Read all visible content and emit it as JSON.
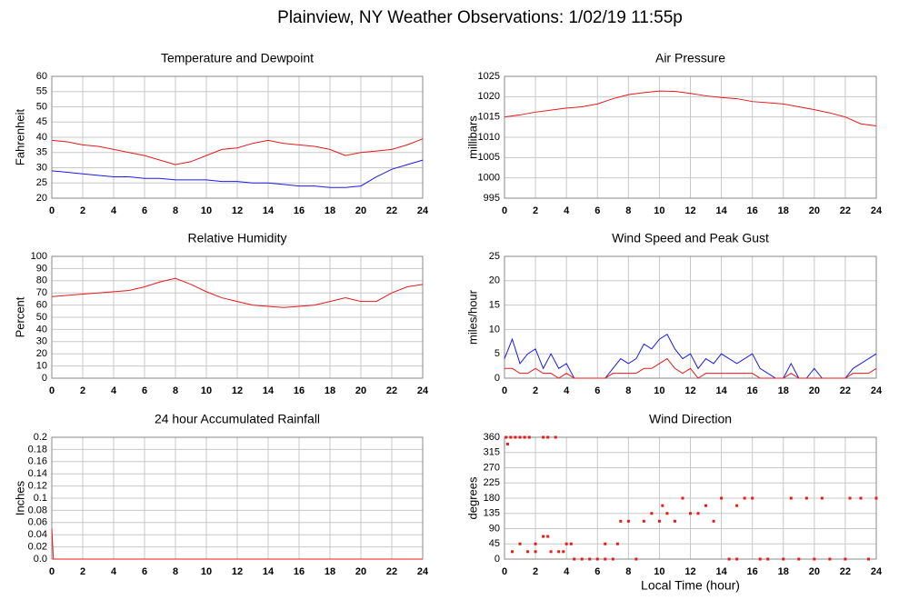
{
  "title": "Plainview, NY Weather Observations: 1/02/19 11:55p",
  "chart_data": [
    {
      "type": "line",
      "title": "Temperature and Dewpoint",
      "ylabel": "Fahrenheit",
      "x": [
        0,
        1,
        2,
        3,
        4,
        5,
        6,
        7,
        8,
        9,
        10,
        11,
        12,
        13,
        14,
        15,
        16,
        17,
        18,
        19,
        20,
        21,
        22,
        23,
        24
      ],
      "series": [
        {
          "color": "#e8191a",
          "values": [
            39,
            38.5,
            37.5,
            37,
            36,
            35,
            34,
            32.5,
            31,
            32,
            34,
            36,
            36.5,
            38,
            39,
            38,
            37.5,
            37,
            36,
            34,
            35,
            35.5,
            36,
            37.5,
            39.5
          ]
        },
        {
          "color": "#1a1ae8",
          "values": [
            29,
            28.5,
            28,
            27.5,
            27,
            27,
            26.5,
            26.5,
            26,
            26,
            26,
            25.5,
            25.5,
            25,
            25,
            24.5,
            24,
            24,
            23.5,
            23.5,
            24,
            27,
            29.5,
            31,
            32.5
          ]
        }
      ],
      "xlim": [
        0,
        24
      ],
      "xticks": [
        0,
        2,
        4,
        6,
        8,
        10,
        12,
        14,
        16,
        18,
        20,
        22,
        24
      ],
      "ylim": [
        20,
        60
      ],
      "yticks": [
        20,
        25,
        30,
        35,
        40,
        45,
        50,
        55,
        60
      ],
      "grid": true
    },
    {
      "type": "line",
      "title": "Air Pressure",
      "ylabel": "millibars",
      "x": [
        0,
        1,
        2,
        3,
        4,
        5,
        6,
        7,
        8,
        9,
        10,
        11,
        12,
        13,
        14,
        15,
        16,
        17,
        18,
        19,
        20,
        21,
        22,
        23,
        24
      ],
      "series": [
        {
          "color": "#e8191a",
          "values": [
            1015,
            1015.5,
            1016.2,
            1016.7,
            1017.2,
            1017.5,
            1018.2,
            1019.5,
            1020.5,
            1021,
            1021.4,
            1021.3,
            1020.8,
            1020.2,
            1019.8,
            1019.5,
            1018.8,
            1018.5,
            1018.2,
            1017.5,
            1016.8,
            1016,
            1015,
            1013.3,
            1012.8
          ]
        }
      ],
      "xlim": [
        0,
        24
      ],
      "xticks": [
        0,
        2,
        4,
        6,
        8,
        10,
        12,
        14,
        16,
        18,
        20,
        22,
        24
      ],
      "ylim": [
        995,
        1025
      ],
      "yticks": [
        995,
        1000,
        1005,
        1010,
        1015,
        1020,
        1025
      ],
      "grid": true
    },
    {
      "type": "line",
      "title": "Relative Humidity",
      "ylabel": "Percent",
      "x": [
        0,
        1,
        2,
        3,
        4,
        5,
        6,
        7,
        8,
        9,
        10,
        11,
        12,
        13,
        14,
        15,
        16,
        17,
        18,
        19,
        20,
        21,
        22,
        23,
        24
      ],
      "series": [
        {
          "color": "#e8191a",
          "values": [
            67,
            68,
            69,
            70,
            71,
            72,
            75,
            79,
            82,
            77,
            71,
            66,
            63,
            60,
            59,
            58,
            59,
            60,
            63,
            66,
            63,
            63,
            70,
            75,
            77
          ]
        }
      ],
      "xlim": [
        0,
        24
      ],
      "xticks": [
        0,
        2,
        4,
        6,
        8,
        10,
        12,
        14,
        16,
        18,
        20,
        22,
        24
      ],
      "ylim": [
        0,
        100
      ],
      "yticks": [
        0,
        10,
        20,
        30,
        40,
        50,
        60,
        70,
        80,
        90,
        100
      ],
      "grid": true
    },
    {
      "type": "line",
      "title": "Wind Speed and Peak Gust",
      "ylabel": "miles/hour",
      "x": [
        0,
        0.5,
        1,
        1.5,
        2,
        2.5,
        3,
        3.5,
        4,
        4.5,
        5,
        5.5,
        6,
        6.5,
        7,
        7.5,
        8,
        8.5,
        9,
        9.5,
        10,
        10.5,
        11,
        11.5,
        12,
        12.5,
        13,
        13.5,
        14,
        14.5,
        15,
        15.5,
        16,
        16.5,
        17,
        17.5,
        18,
        18.5,
        19,
        19.5,
        20,
        20.5,
        21,
        21.5,
        22,
        22.5,
        23,
        23.5,
        24
      ],
      "series": [
        {
          "color": "#1a1ae8",
          "values": [
            4,
            8,
            3,
            5,
            6,
            2,
            5,
            2,
            3,
            0,
            0,
            0,
            0,
            0,
            2,
            4,
            3,
            4,
            7,
            6,
            8,
            9,
            6,
            4,
            5,
            2,
            4,
            3,
            5,
            4,
            3,
            4,
            5,
            2,
            1,
            0,
            0,
            3,
            0,
            0,
            2,
            0,
            0,
            0,
            0,
            2,
            3,
            4,
            5
          ]
        },
        {
          "color": "#e8191a",
          "values": [
            2,
            2,
            1,
            1,
            2,
            1,
            1,
            0,
            1,
            0,
            0,
            0,
            0,
            0,
            1,
            1,
            1,
            1,
            2,
            2,
            3,
            4,
            2,
            1,
            2,
            0,
            1,
            1,
            1,
            1,
            1,
            1,
            1,
            0,
            0,
            0,
            0,
            1,
            0,
            0,
            0,
            0,
            0,
            0,
            0,
            1,
            1,
            1,
            2
          ]
        }
      ],
      "xlim": [
        0,
        24
      ],
      "xticks": [
        0,
        2,
        4,
        6,
        8,
        10,
        12,
        14,
        16,
        18,
        20,
        22,
        24
      ],
      "ylim": [
        0,
        25
      ],
      "yticks": [
        0,
        5,
        10,
        15,
        20,
        25
      ],
      "grid": true
    },
    {
      "type": "line",
      "title": "24 hour Accumulated Rainfall",
      "ylabel": "Inches",
      "x": [
        0,
        0.1,
        24
      ],
      "series": [
        {
          "color": "#e8191a",
          "values": [
            0.05,
            0,
            0
          ]
        }
      ],
      "xlim": [
        0,
        24
      ],
      "xticks": [
        0,
        2,
        4,
        6,
        8,
        10,
        12,
        14,
        16,
        18,
        20,
        22,
        24
      ],
      "ylim": [
        0,
        0.2
      ],
      "yticks": [
        {
          "value": 0,
          "label": "0.0"
        },
        0.02,
        0.04,
        0.06,
        0.08,
        0.1,
        0.12,
        0.14,
        0.16,
        0.18,
        0.2
      ],
      "grid": true
    },
    {
      "type": "scatter",
      "title": "Wind Direction",
      "ylabel": "degrees",
      "xlabel": "Local Time (hour)",
      "color": "#e8191a",
      "x": [
        0.1,
        0.4,
        0.7,
        1.0,
        1.3,
        1.6,
        2.5,
        2.8,
        3.3,
        0.2,
        0.5,
        1.0,
        1.5,
        2.0,
        2.0,
        2.5,
        2.8,
        3.0,
        3.5,
        3.8,
        4.0,
        4.3,
        4.5,
        5.0,
        5.5,
        6.0,
        6.5,
        6.5,
        7.0,
        7.3,
        7.5,
        8.0,
        8.5,
        9.0,
        9.5,
        10.0,
        10.2,
        10.5,
        11.0,
        11.5,
        12.0,
        12.5,
        13.0,
        13.5,
        14.0,
        14.5,
        15.0,
        15.0,
        15.5,
        16.0,
        16.5,
        17.0,
        18.0,
        18.5,
        19.0,
        19.5,
        20.0,
        20.5,
        21.0,
        22.0,
        22.3,
        23.0,
        23.5,
        24.0
      ],
      "values": [
        360,
        360,
        360,
        360,
        360,
        360,
        360,
        360,
        360,
        340,
        22,
        45,
        22,
        45,
        22,
        67,
        67,
        22,
        22,
        22,
        45,
        45,
        0,
        0,
        0,
        0,
        0,
        45,
        0,
        45,
        112,
        112,
        0,
        112,
        135,
        112,
        158,
        135,
        112,
        180,
        135,
        135,
        158,
        112,
        180,
        0,
        0,
        158,
        180,
        180,
        0,
        0,
        0,
        180,
        0,
        180,
        0,
        180,
        0,
        0,
        180,
        180,
        0,
        180
      ],
      "xlim": [
        0,
        24
      ],
      "xticks": [
        0,
        2,
        4,
        6,
        8,
        10,
        12,
        14,
        16,
        18,
        20,
        22,
        24
      ],
      "ylim": [
        0,
        360
      ],
      "yticks": [
        0,
        45,
        90,
        135,
        180,
        225,
        270,
        315,
        360
      ],
      "grid": true
    }
  ]
}
